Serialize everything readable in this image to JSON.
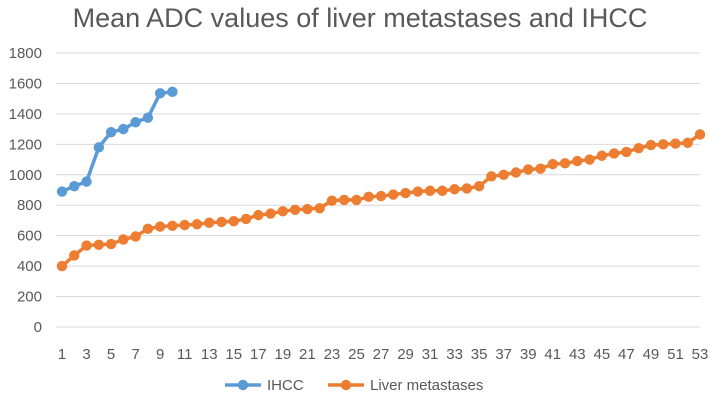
{
  "chart_data": {
    "type": "line",
    "title": "Mean ADC values of liver metastases and IHCC",
    "xlabel": "",
    "ylabel": "",
    "ylim": [
      0,
      1800
    ],
    "y_ticks": [
      0,
      200,
      400,
      600,
      800,
      1000,
      1200,
      1400,
      1600,
      1800
    ],
    "x_tick_labels": [
      1,
      3,
      5,
      7,
      9,
      11,
      13,
      15,
      17,
      19,
      21,
      23,
      25,
      27,
      29,
      31,
      33,
      35,
      37,
      39,
      41,
      43,
      45,
      47,
      49,
      51,
      53
    ],
    "x_range": [
      1,
      53
    ],
    "grid": "horizontal",
    "legend_position": "bottom",
    "series": [
      {
        "name": "IHCC",
        "color": "#5b9bd5",
        "x": [
          1,
          2,
          3,
          4,
          5,
          6,
          7,
          8,
          9,
          10
        ],
        "values": [
          890,
          925,
          955,
          1180,
          1280,
          1300,
          1345,
          1375,
          1535,
          1545
        ]
      },
      {
        "name": "Liver metastases",
        "color": "#ed7d31",
        "x": [
          1,
          2,
          3,
          4,
          5,
          6,
          7,
          8,
          9,
          10,
          11,
          12,
          13,
          14,
          15,
          16,
          17,
          18,
          19,
          20,
          21,
          22,
          23,
          24,
          25,
          26,
          27,
          28,
          29,
          30,
          31,
          32,
          33,
          34,
          35,
          36,
          37,
          38,
          39,
          40,
          41,
          42,
          43,
          44,
          45,
          46,
          47,
          48,
          49,
          50,
          51,
          52,
          53
        ],
        "values": [
          400,
          470,
          535,
          540,
          545,
          575,
          595,
          645,
          660,
          665,
          670,
          675,
          685,
          690,
          695,
          710,
          735,
          745,
          760,
          770,
          775,
          780,
          830,
          835,
          835,
          855,
          860,
          870,
          880,
          890,
          895,
          895,
          905,
          910,
          925,
          990,
          1000,
          1015,
          1035,
          1040,
          1070,
          1075,
          1090,
          1100,
          1125,
          1140,
          1150,
          1175,
          1195,
          1200,
          1205,
          1210,
          1265
        ]
      }
    ]
  }
}
